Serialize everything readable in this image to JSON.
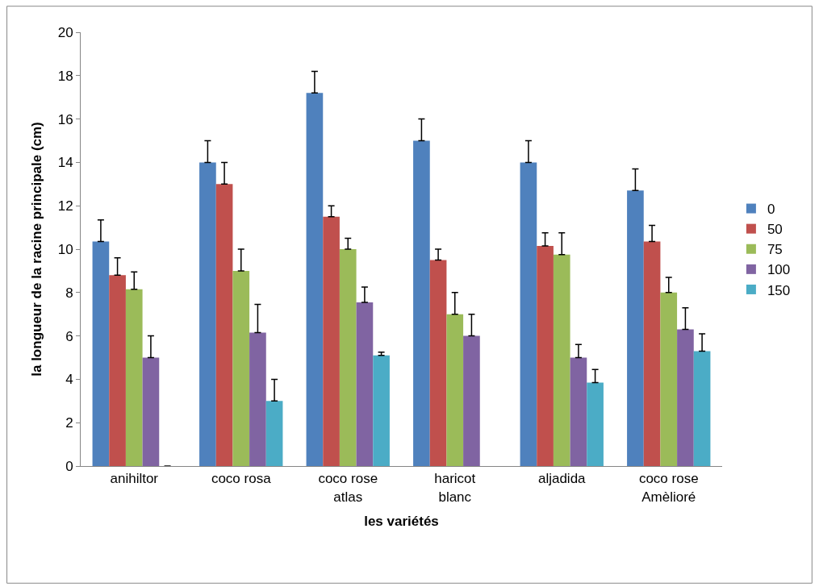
{
  "chart_data": {
    "type": "bar",
    "xlabel": "les variétés",
    "ylabel": "la longueur de la racine principale (cm)",
    "categories": [
      "anihiltor",
      "coco rosa",
      "coco rose atlas",
      "haricot blanc",
      "aljadida",
      "coco rose Amèlioré"
    ],
    "series": [
      {
        "name": "0",
        "color": "#4f81bd",
        "values": [
          10.35,
          14,
          17.2,
          15,
          14,
          12.7
        ],
        "errors": [
          1,
          1,
          1,
          1,
          1,
          1
        ]
      },
      {
        "name": "50",
        "color": "#c0504d",
        "values": [
          8.8,
          13,
          11.5,
          9.5,
          10.15,
          10.35
        ],
        "errors": [
          0.8,
          1,
          0.5,
          0.5,
          0.6,
          0.75
        ]
      },
      {
        "name": "75",
        "color": "#9bbb59",
        "values": [
          8.15,
          9,
          10,
          7,
          9.75,
          8
        ],
        "errors": [
          0.8,
          1,
          0.5,
          1,
          1,
          0.7
        ]
      },
      {
        "name": "100",
        "color": "#8064a2",
        "values": [
          5,
          6.15,
          7.55,
          6,
          5,
          6.3
        ],
        "errors": [
          1,
          1.3,
          0.7,
          1,
          0.6,
          1
        ]
      },
      {
        "name": "150",
        "color": "#4bacc6",
        "values": [
          0,
          3,
          5.1,
          null,
          3.85,
          5.3
        ],
        "errors": [
          null,
          1,
          0.15,
          null,
          0.6,
          0.8
        ]
      }
    ],
    "ylim": [
      0,
      20
    ],
    "yticks": [
      0,
      2,
      4,
      6,
      8,
      10,
      12,
      14,
      16,
      18,
      20
    ],
    "legend": "right"
  }
}
